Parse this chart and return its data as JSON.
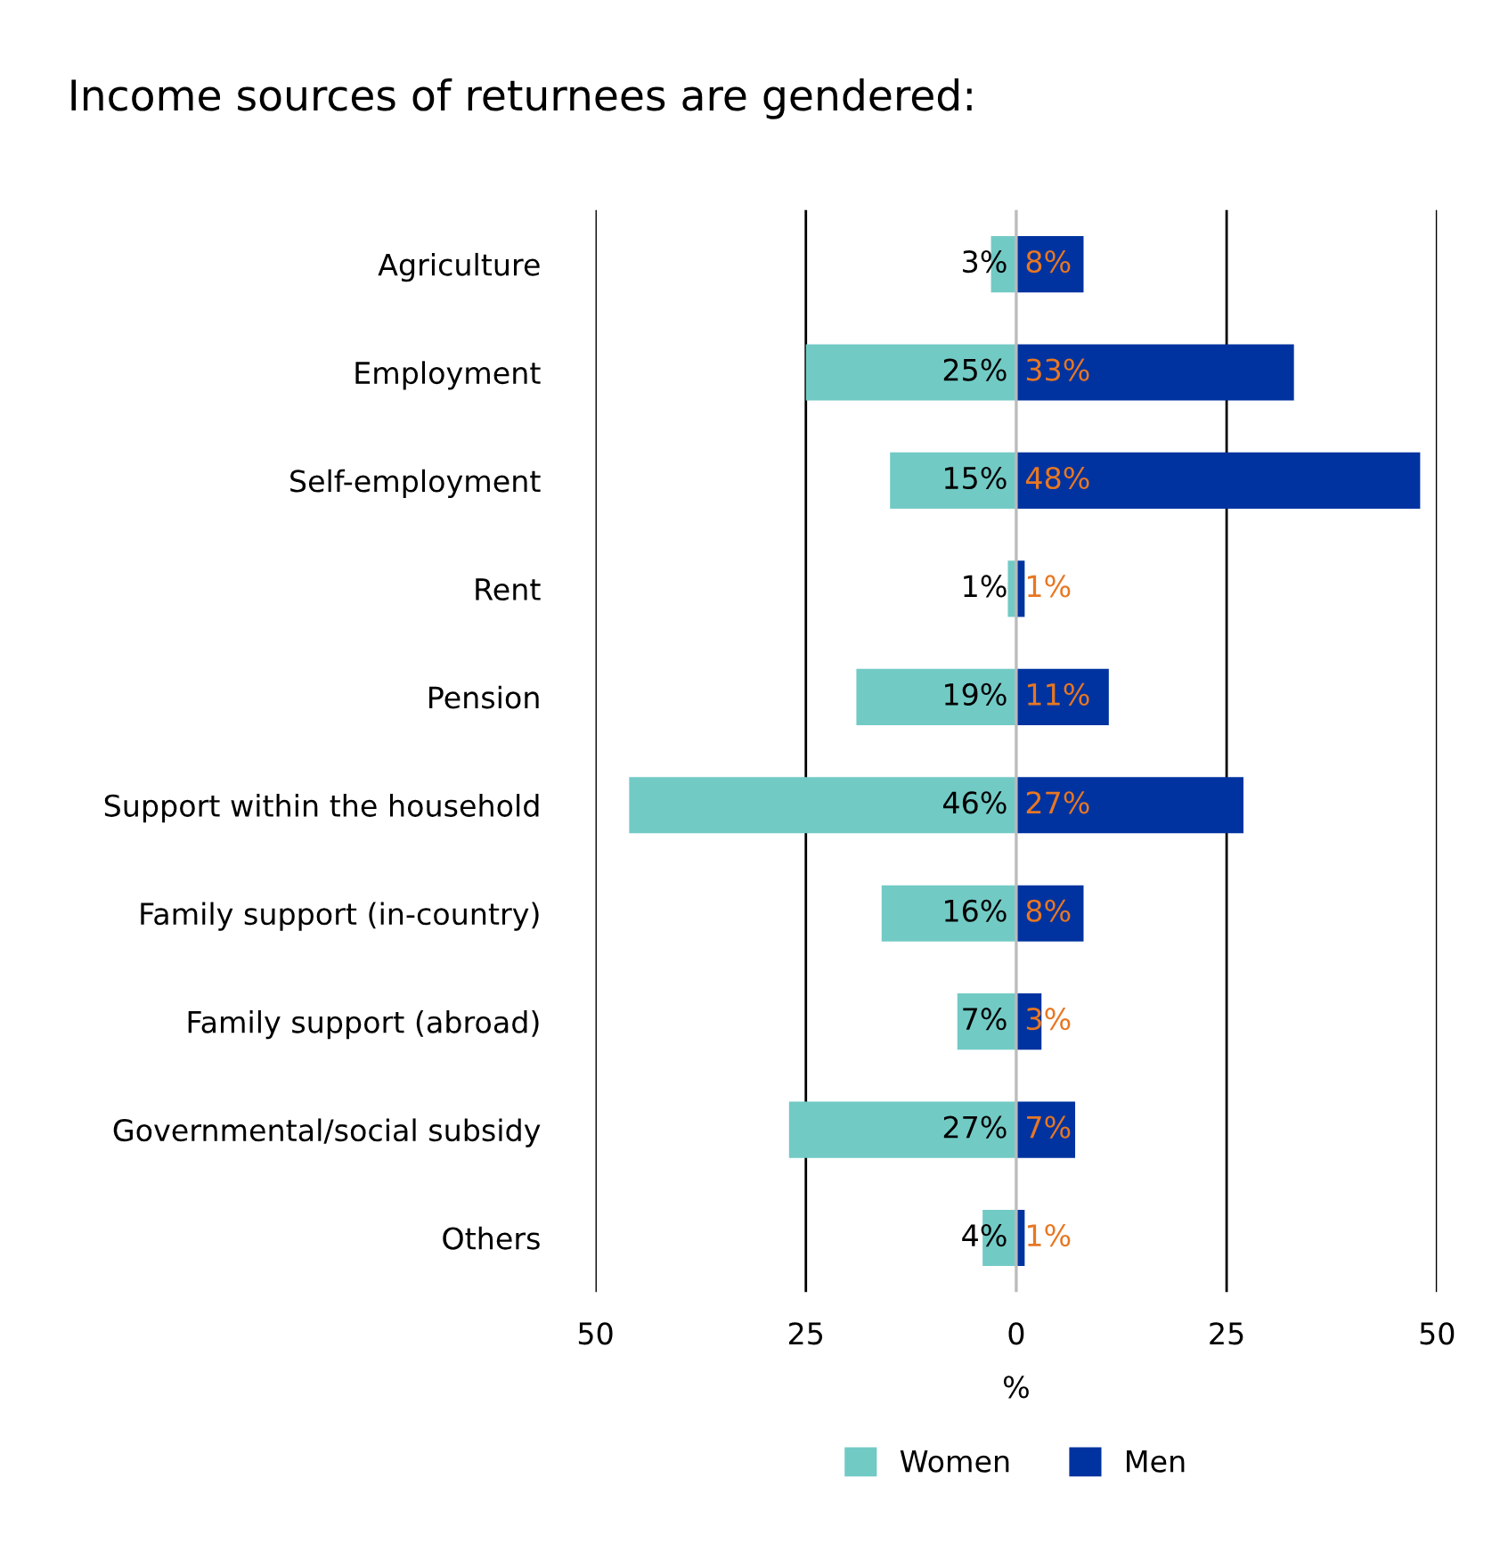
{
  "chart_data": {
    "type": "bar",
    "orientation": "horizontal",
    "title": "Income sources of returnees are gendered:",
    "xlabel": "%",
    "categories": [
      "Agriculture",
      "Employment",
      "Self-employment",
      "Rent",
      "Pension",
      "Support within the household",
      "Family support (in-country)",
      "Family support (abroad)",
      "Governmental/social subsidy",
      "Others"
    ],
    "series": [
      {
        "name": "Women",
        "color": "#72cac5",
        "base": [
          -3,
          -25,
          -15,
          -1,
          -19,
          -46,
          -16,
          -7,
          -27,
          -4
        ],
        "values": [
          3,
          25,
          15,
          1,
          19,
          46,
          16,
          7,
          27,
          4
        ],
        "value_labels": [
          "3%",
          "25%",
          "15%",
          "1%",
          "19%",
          "46%",
          "16%",
          "7%",
          "27%",
          "4%"
        ]
      },
      {
        "name": "Men",
        "color": "#0033a0",
        "values": [
          8,
          33,
          48,
          1,
          11,
          27,
          8,
          3,
          7,
          1
        ],
        "value_labels": [
          "8%",
          "33%",
          "48%",
          "1%",
          "11%",
          "27%",
          "8%",
          "3%",
          "7%",
          "1%"
        ]
      }
    ],
    "xlim": [
      -50,
      50
    ],
    "xticks": [
      {
        "value": -50,
        "label": "50"
      },
      {
        "value": -25,
        "label": "25"
      },
      0,
      25,
      50
    ],
    "grid": "x",
    "legend": "bottom"
  }
}
